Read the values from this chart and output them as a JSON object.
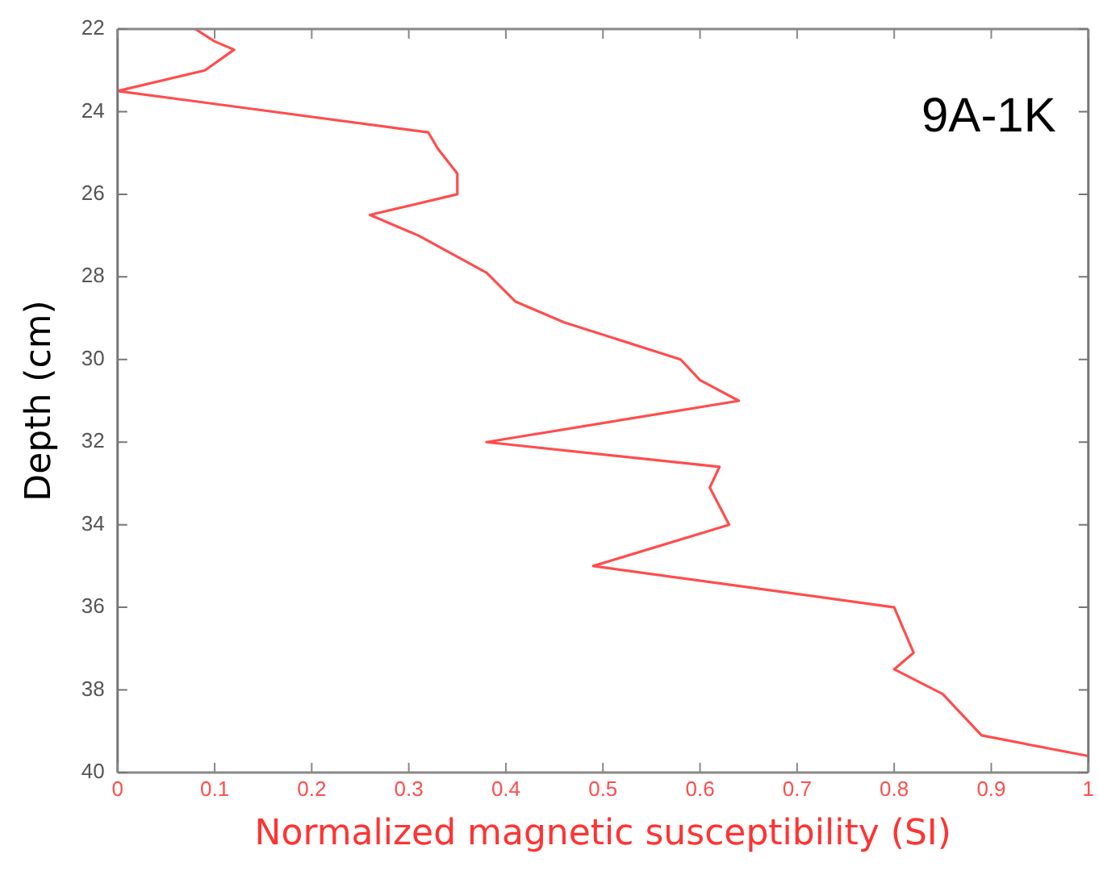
{
  "chart_data": {
    "type": "line",
    "xlabel": "Normalized magnetic susceptibility (SI)",
    "ylabel": "Depth (cm)",
    "annotations": [
      "9A-1K"
    ],
    "xlim": [
      0,
      1
    ],
    "xticks": [
      0,
      0.1,
      0.2,
      0.3,
      0.4,
      0.5,
      0.6,
      0.7,
      0.8,
      0.9,
      1
    ],
    "ylim": [
      40,
      22
    ],
    "yticks": [
      22,
      24,
      26,
      28,
      30,
      32,
      34,
      36,
      38,
      40
    ],
    "grid": false,
    "legend": false,
    "line_style": "solid",
    "marker": "none",
    "series": [
      {
        "color": "#ff4d4d",
        "x": [
          0.08,
          0.1,
          0.12,
          0.09,
          0.0,
          0.32,
          0.33,
          0.35,
          0.35,
          0.26,
          0.31,
          0.38,
          0.41,
          0.46,
          0.58,
          0.6,
          0.64,
          0.38,
          0.62,
          0.61,
          0.63,
          0.49,
          0.8,
          0.82,
          0.8,
          0.85,
          0.89,
          1.0
        ],
        "values": [
          22.0,
          22.3,
          22.5,
          23.0,
          23.5,
          24.5,
          24.9,
          25.5,
          26.0,
          26.5,
          27.0,
          27.9,
          28.6,
          29.1,
          30.0,
          30.5,
          31.0,
          32.0,
          32.6,
          33.1,
          34.0,
          35.0,
          36.0,
          37.1,
          37.5,
          38.1,
          39.1,
          39.6
        ]
      }
    ]
  }
}
